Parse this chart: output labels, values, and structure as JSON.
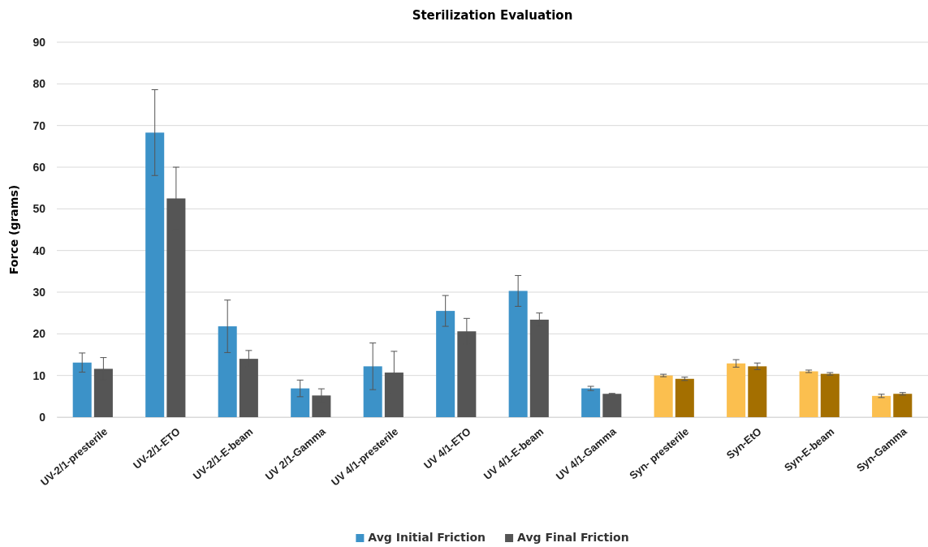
{
  "chart_data": {
    "type": "bar",
    "title": "Sterilization Evaluation",
    "ylabel": "Force (grams)",
    "categories": [
      "UV-2/1-presterile",
      "UV-2/1-ETO",
      "UV-2/1-E-beam",
      "UV 2/1-Gamma",
      "UV 4/1-presterile",
      "UV 4/1-ETO",
      "UV 4/1-E-beam",
      "UV 4/1-Gamma",
      "Syn- presterile",
      "Syn-EtO",
      "Syn-E-beam",
      "Syn-Gamma"
    ],
    "series": [
      {
        "name": "Avg Initial Friction",
        "color": "#3c92c8",
        "colors": [
          "#3c92c8",
          "#3c92c8",
          "#3c92c8",
          "#3c92c8",
          "#3c92c8",
          "#3c92c8",
          "#3c92c8",
          "#3c92c8",
          "#fbbf4f",
          "#fbbf4f",
          "#fbbf4f",
          "#fbbf4f"
        ],
        "values": [
          13.1,
          68.3,
          21.8,
          6.9,
          12.2,
          25.5,
          30.3,
          6.9,
          10,
          12.9,
          11,
          5.1
        ],
        "errors": [
          2.3,
          10.3,
          6.3,
          2,
          5.6,
          3.7,
          3.7,
          0.5,
          0.3,
          0.9,
          0.3,
          0.4
        ]
      },
      {
        "name": "Avg Final Friction",
        "color": "#555555",
        "colors": [
          "#555555",
          "#555555",
          "#555555",
          "#555555",
          "#555555",
          "#555555",
          "#555555",
          "#555555",
          "#a46f00",
          "#a46f00",
          "#a46f00",
          "#a46f00"
        ],
        "values": [
          11.6,
          52.5,
          14,
          5.2,
          10.7,
          20.6,
          23.4,
          5.6,
          9.2,
          12.2,
          10.4,
          5.6
        ],
        "errors": [
          2.7,
          7.5,
          2,
          1.6,
          5.1,
          3.1,
          1.6,
          0.1,
          0.4,
          0.8,
          0.3,
          0.3
        ]
      }
    ],
    "ylim": [
      0,
      90
    ],
    "yticks": [
      0,
      10,
      20,
      30,
      40,
      50,
      60,
      70,
      80,
      90
    ],
    "grid": "y",
    "legend": "bottom"
  }
}
